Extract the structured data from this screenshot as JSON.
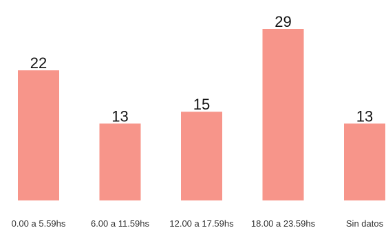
{
  "chart_data": {
    "type": "bar",
    "categories": [
      "0.00 a 5.59hs",
      "6.00 a 11.59hs",
      "12.00 a 17.59hs",
      "18.00 a 23.59hs",
      "Sin datos"
    ],
    "values": [
      22,
      13,
      15,
      29,
      13
    ],
    "title": "",
    "xlabel": "",
    "ylabel": "",
    "ylim": [
      0,
      29
    ],
    "grid": false,
    "legend": "none",
    "bar_color": "#f7958a",
    "label_color": "#111111",
    "tick_color": "#333333"
  }
}
